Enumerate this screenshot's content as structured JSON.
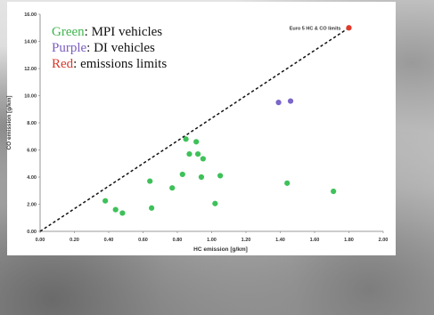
{
  "colors": {
    "mpi": "#3ec159",
    "di": "#7b66c9",
    "limit": "#e23a2a",
    "legend_green": "#3fb54e",
    "legend_purple": "#7c5cbf",
    "legend_red": "#d8372a"
  },
  "legend": {
    "green_key": "Green",
    "green_text": ": MPI vehicles",
    "purple_key": "Purple",
    "purple_text": ": DI vehicles",
    "red_key": "Red",
    "red_text": ": emissions limits"
  },
  "chart_data": {
    "type": "scatter",
    "title": "",
    "xlabel": "HC emission [g/km]",
    "ylabel": "CO emission [g/km]",
    "xlim": [
      0,
      2
    ],
    "ylim": [
      0,
      16
    ],
    "x_ticks": [
      "0.00",
      "0.20",
      "0.40",
      "0.60",
      "0.80",
      "1.00",
      "1.20",
      "1.40",
      "1.60",
      "1.80",
      "2.00"
    ],
    "y_ticks": [
      "0.00",
      "2.00",
      "4.00",
      "6.00",
      "8.00",
      "10.00",
      "12.00",
      "14.00",
      "16.00"
    ],
    "grid": false,
    "series": [
      {
        "color_key": "mpi",
        "points": [
          [
            0.38,
            2.25
          ],
          [
            0.44,
            1.6
          ],
          [
            0.48,
            1.35
          ],
          [
            0.64,
            3.7
          ],
          [
            0.65,
            1.72
          ],
          [
            0.77,
            3.2
          ],
          [
            0.83,
            4.2
          ],
          [
            0.85,
            6.8
          ],
          [
            0.87,
            5.7
          ],
          [
            0.91,
            6.6
          ],
          [
            0.92,
            5.7
          ],
          [
            0.94,
            4.0
          ],
          [
            0.95,
            5.35
          ],
          [
            1.02,
            2.05
          ],
          [
            1.05,
            4.1
          ],
          [
            1.44,
            3.55
          ],
          [
            1.71,
            2.95
          ]
        ]
      },
      {
        "color_key": "di",
        "points": [
          [
            1.39,
            9.5
          ],
          [
            1.46,
            9.6
          ]
        ]
      },
      {
        "color_key": "limit",
        "points": [
          [
            1.8,
            15.0
          ]
        ]
      }
    ],
    "limit_line": {
      "from": [
        0,
        0
      ],
      "to": [
        1.8,
        15.0
      ]
    },
    "annotations": [
      {
        "text": "Euro 5 HC & CO limits",
        "x": 1.8,
        "y": 15.0
      }
    ]
  }
}
